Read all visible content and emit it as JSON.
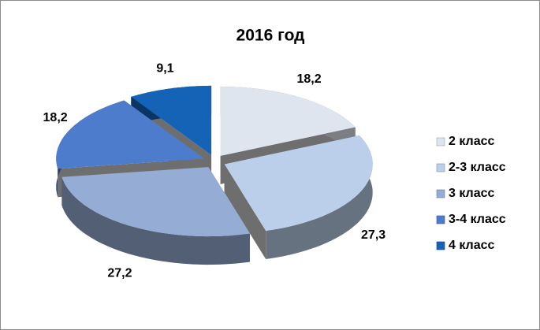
{
  "chart_data": {
    "type": "pie",
    "title": "2016 год",
    "categories": [
      "2 класс",
      "2-3 класс",
      "3 класс",
      "3-4 класс",
      "4 класс"
    ],
    "values": [
      18.2,
      27.3,
      27.2,
      18.2,
      9.1
    ],
    "value_labels": [
      "18,2",
      "27,3",
      "27,2",
      "18,2",
      "9,1"
    ],
    "colors": [
      "#dfe5ef",
      "#bccfea",
      "#95acd5",
      "#4e7ccc",
      "#1463b6"
    ],
    "legend": "right"
  }
}
